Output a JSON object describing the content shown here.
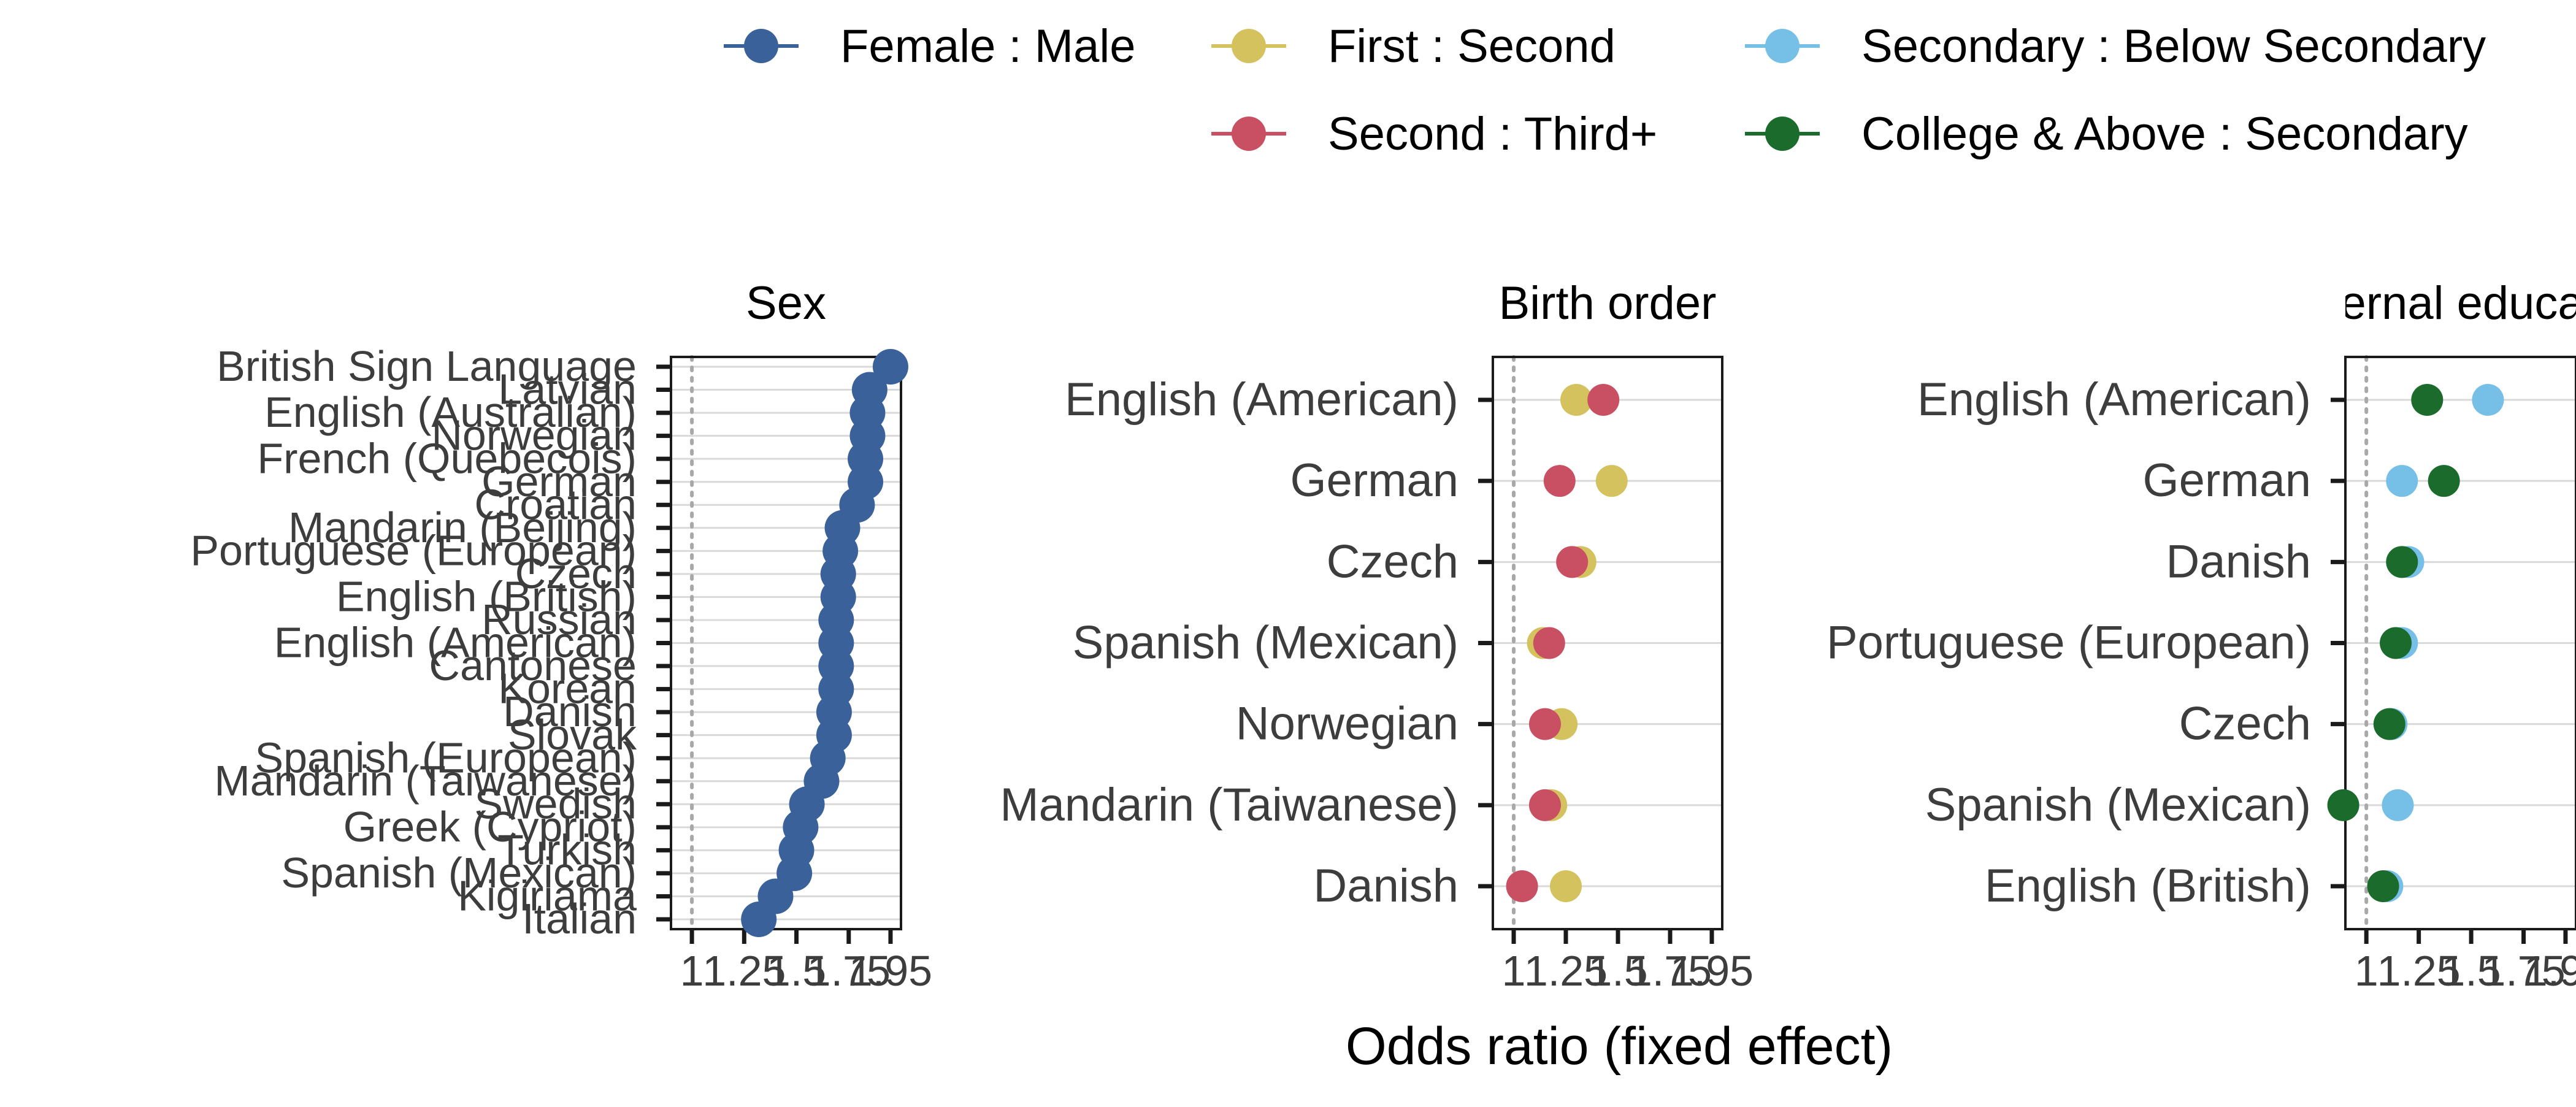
{
  "chart_data": {
    "type": "scatter",
    "xlabel": "Odds ratio (fixed effect)",
    "x_ticks": [
      "1",
      "1.25",
      "1.5",
      "1.75",
      "1.95"
    ],
    "legend": {
      "position": "top",
      "entries": [
        {
          "key": "fm",
          "label": "Female : Male",
          "color": "#3a6199"
        },
        {
          "key": "fs",
          "label": "First : Second",
          "color": "#d4c25f"
        },
        {
          "key": "sb",
          "label": "Secondary : Below Secondary",
          "color": "#76bfe7"
        },
        {
          "key": "st",
          "label": "Second : Third+",
          "color": "#c94f63"
        },
        {
          "key": "cs",
          "label": "College & Above : Secondary",
          "color": "#1a6b2c"
        }
      ]
    },
    "panels": [
      {
        "title": "Sex",
        "xlim": [
          0.9,
          2.0
        ],
        "categories": [
          "British Sign Language",
          "Latvian",
          "English (Australian)",
          "Norwegian",
          "French (Quebecois)",
          "German",
          "Croatian",
          "Mandarin (Beijing)",
          "Portuguese (European)",
          "Czech",
          "English (British)",
          "Russian",
          "English (American)",
          "Cantonese",
          "Korean",
          "Danish",
          "Slovak",
          "Spanish (European)",
          "Mandarin (Taiwanese)",
          "Swedish",
          "Greek (Cypriot)",
          "Turkish",
          "Spanish (Mexican)",
          "Kigiriama",
          "Italian"
        ],
        "series": [
          {
            "key": "fm",
            "values": [
              1.95,
              1.85,
              1.84,
              1.84,
              1.83,
              1.83,
              1.79,
              1.72,
              1.71,
              1.7,
              1.7,
              1.69,
              1.69,
              1.69,
              1.69,
              1.68,
              1.68,
              1.65,
              1.62,
              1.55,
              1.52,
              1.5,
              1.49,
              1.4,
              1.32
            ]
          }
        ]
      },
      {
        "title": "Birth order",
        "xlim": [
          0.9,
          2.0
        ],
        "categories": [
          "English (American)",
          "German",
          "Czech",
          "Spanish (Mexican)",
          "Norwegian",
          "Mandarin (Taiwanese)",
          "Danish"
        ],
        "series": [
          {
            "key": "fs",
            "values": [
              1.3,
              1.47,
              1.32,
              1.14,
              1.23,
              1.18,
              1.25
            ]
          },
          {
            "key": "st",
            "values": [
              1.43,
              1.22,
              1.28,
              1.17,
              1.15,
              1.15,
              1.04
            ]
          }
        ]
      },
      {
        "title": "Maternal education",
        "xlim": [
          0.9,
          2.0
        ],
        "categories": [
          "English (American)",
          "German",
          "Danish",
          "Portuguese (European)",
          "Czech",
          "Spanish (Mexican)",
          "English (British)"
        ],
        "series": [
          {
            "key": "sb",
            "values": [
              1.58,
              1.17,
              1.2,
              1.17,
              1.12,
              1.15,
              1.1
            ]
          },
          {
            "key": "cs",
            "values": [
              1.29,
              1.37,
              1.17,
              1.14,
              1.11,
              0.89,
              1.08
            ]
          }
        ]
      }
    ]
  }
}
